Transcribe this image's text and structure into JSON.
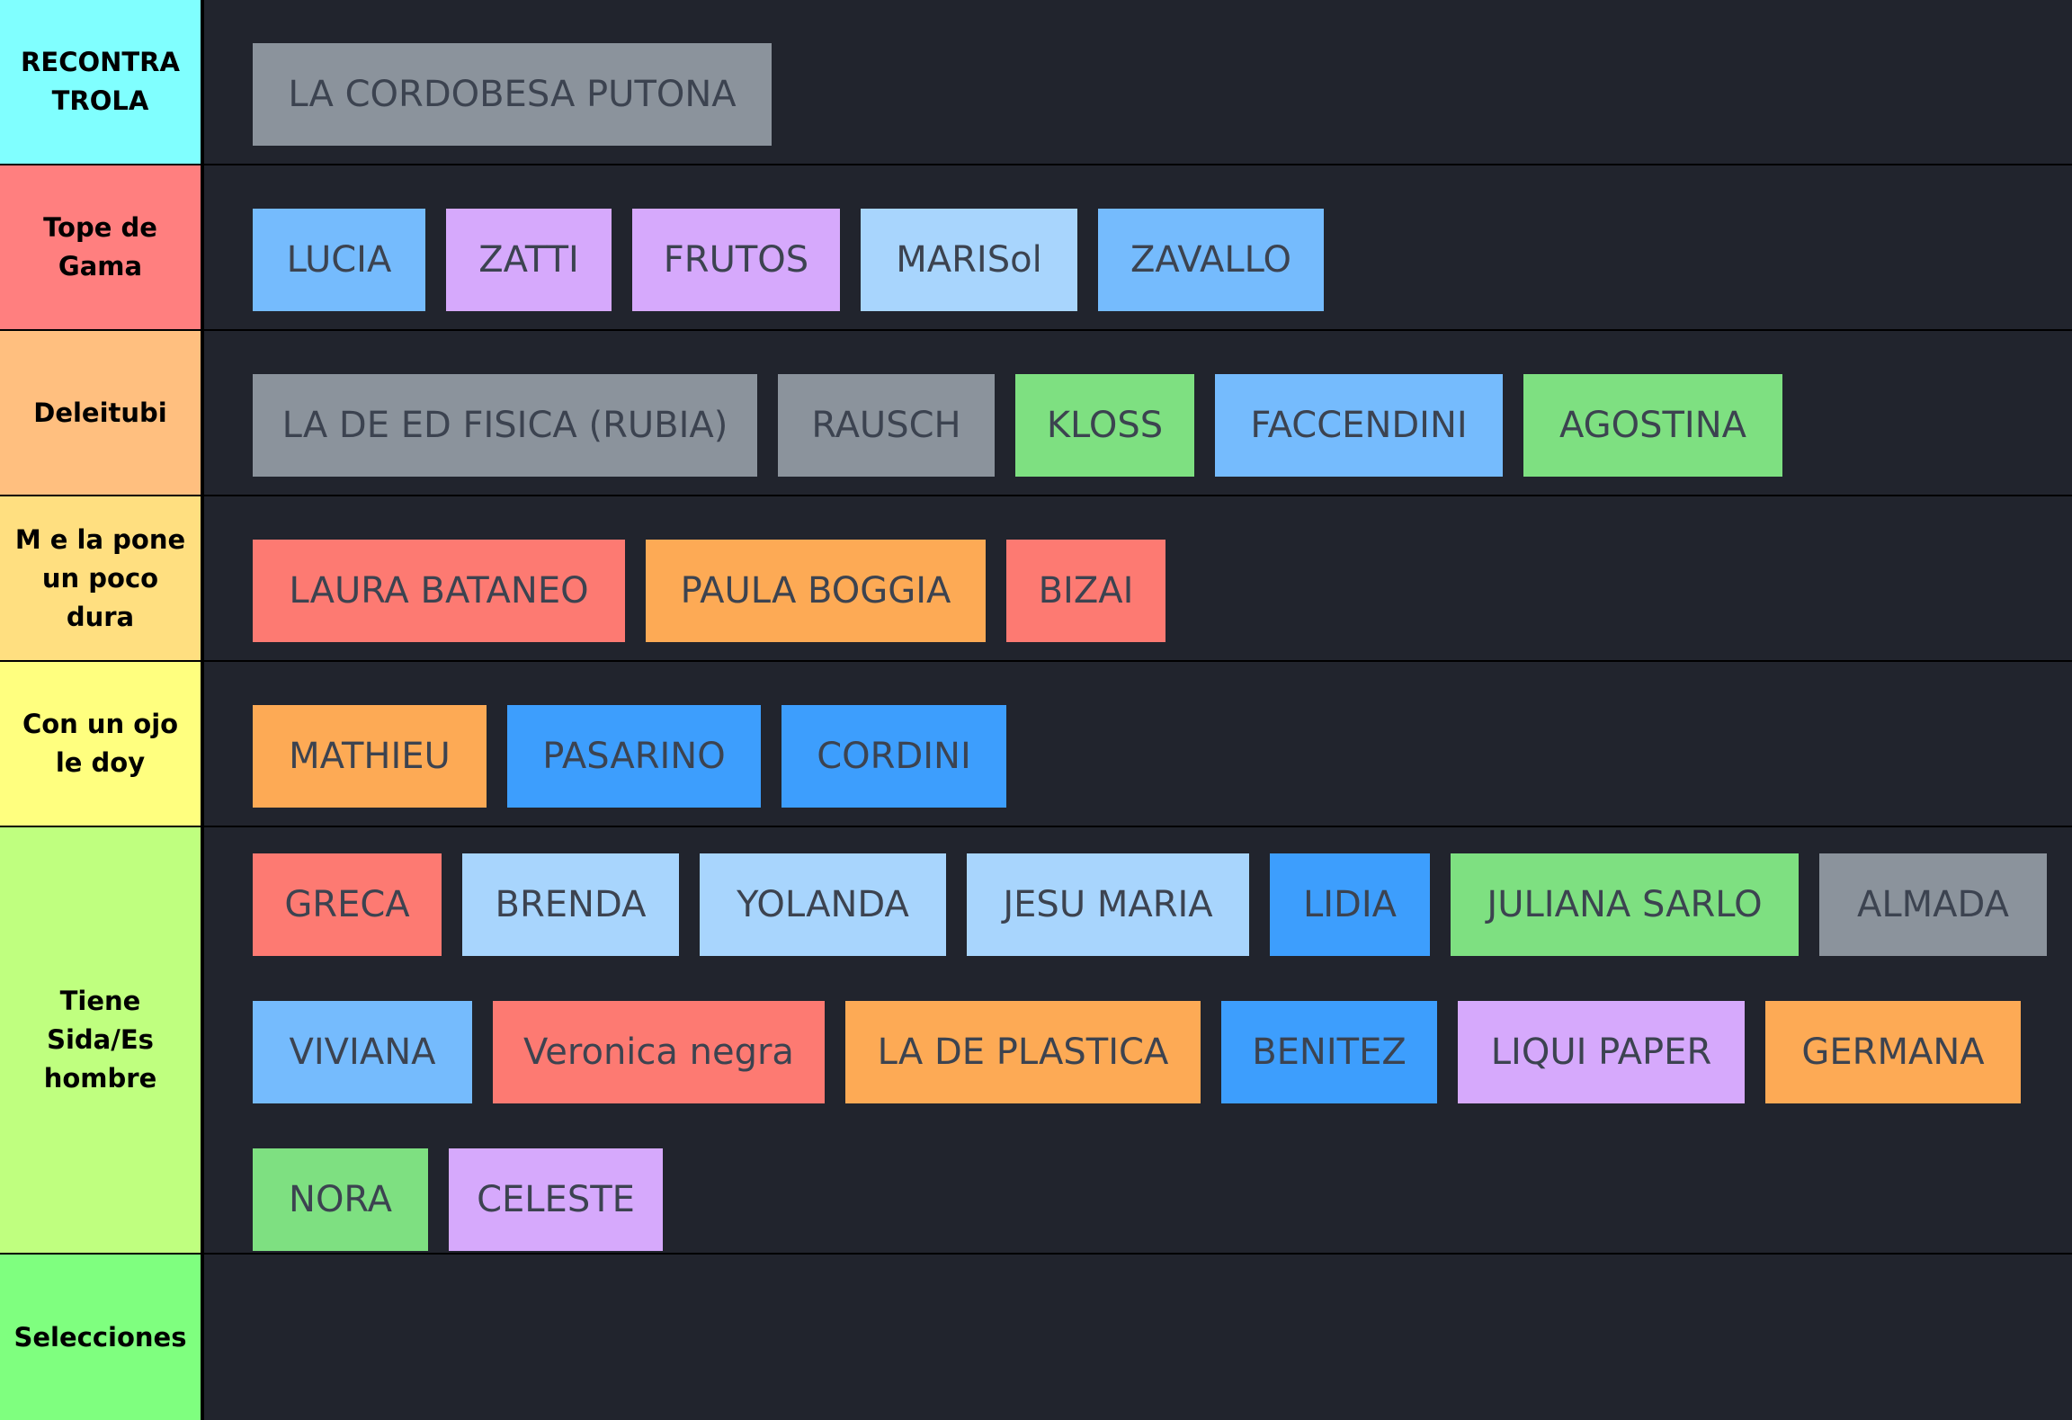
{
  "tiers": [
    {
      "label": "RECONTRA TROLA",
      "color": "#80ffff",
      "items": [
        {
          "name": "LA CORDOBESA  PUTONA",
          "color": "#8b939c"
        }
      ]
    },
    {
      "label": "Tope de Gama",
      "color": "#ff7f7f",
      "items": [
        {
          "name": "LUCIA",
          "color": "#75bbfd"
        },
        {
          "name": "ZATTI",
          "color": "#d6a9fc"
        },
        {
          "name": "FRUTOS",
          "color": "#d6a9fc"
        },
        {
          "name": "MARISol",
          "color": "#a8d5fd"
        },
        {
          "name": "ZAVALLO",
          "color": "#75bbfd"
        }
      ]
    },
    {
      "label": "Deleitubi",
      "color": "#ffbf7f",
      "items": [
        {
          "name": "LA DE ED FISICA (RUBIA)",
          "color": "#8b939c"
        },
        {
          "name": "RAUSCH",
          "color": "#8b939c"
        },
        {
          "name": "KLOSS",
          "color": "#7ee081"
        },
        {
          "name": "FACCENDINI",
          "color": "#75bbfd"
        },
        {
          "name": "AGOSTINA",
          "color": "#7ee081"
        }
      ]
    },
    {
      "label": "M e la pone un poco dura",
      "color": "#ffdf80",
      "items": [
        {
          "name": "LAURA BATANEO",
          "color": "#fd7a72"
        },
        {
          "name": "PAULA BOGGIA",
          "color": "#fdaa55"
        },
        {
          "name": "BIZAI",
          "color": "#fd7a72"
        }
      ]
    },
    {
      "label": "Con un ojo le doy",
      "color": "#ffff7f",
      "items": [
        {
          "name": "MATHIEU",
          "color": "#fdaa55"
        },
        {
          "name": "PASARINO",
          "color": "#3d9efd"
        },
        {
          "name": "CORDINI",
          "color": "#3d9efd"
        }
      ]
    },
    {
      "label": "Tiene Sida/Es hombre",
      "color": "#bfff7f",
      "items": [
        {
          "name": "GRECA",
          "color": "#fd7a72"
        },
        {
          "name": "BRENDA",
          "color": "#a8d5fd"
        },
        {
          "name": "YOLANDA",
          "color": "#a8d5fd"
        },
        {
          "name": "JESU MARIA",
          "color": "#a8d5fd"
        },
        {
          "name": "LIDIA",
          "color": "#3d9efd"
        },
        {
          "name": "JULIANA  SARLO",
          "color": "#7ee081"
        },
        {
          "name": "ALMADA",
          "color": "#8b939c"
        },
        {
          "name": "VIVIANA",
          "color": "#75bbfd"
        },
        {
          "name": "Veronica negra",
          "color": "#fd7a72"
        },
        {
          "name": "LA DE PLASTICA",
          "color": "#fdaa55"
        },
        {
          "name": "BENITEZ",
          "color": "#3d9efd"
        },
        {
          "name": "LIQUI PAPER",
          "color": "#d6a9fc"
        },
        {
          "name": "GERMANA",
          "color": "#fdaa55"
        },
        {
          "name": "NORA",
          "color": "#7ee081"
        },
        {
          "name": "CELESTE",
          "color": "#d6a9fc"
        }
      ]
    },
    {
      "label": "Selecciones",
      "color": "#7fff7f",
      "items": []
    }
  ]
}
